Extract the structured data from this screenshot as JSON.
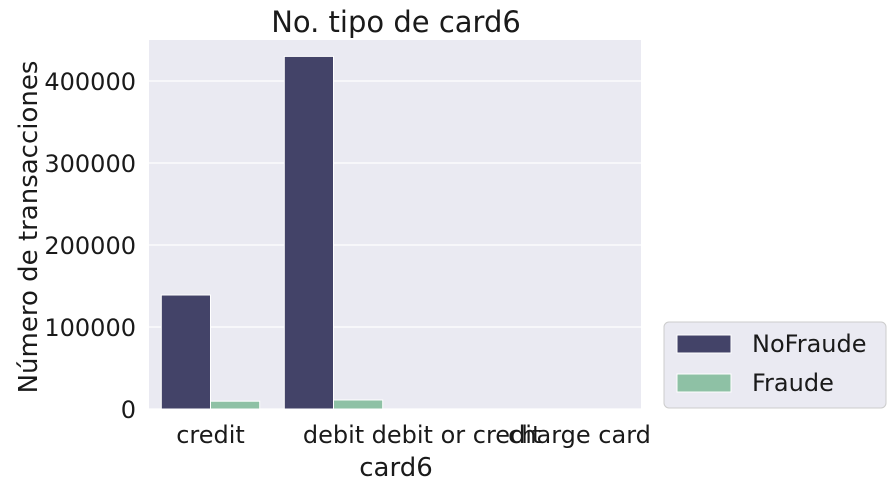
{
  "chart_data": {
    "type": "bar",
    "title": "No. tipo de card6",
    "xlabel": "card6",
    "ylabel": "Número de transacciones",
    "categories": [
      "credit",
      "debit",
      "debit or credit",
      "charge card"
    ],
    "series": [
      {
        "name": "NoFraude",
        "values": [
          139000,
          430000,
          30,
          15
        ],
        "color": "#434368"
      },
      {
        "name": "Fraude",
        "values": [
          9500,
          11000,
          0,
          0
        ],
        "color": "#8ec1a5"
      }
    ],
    "ylim": [
      0,
      450000
    ],
    "yticks": [
      0,
      100000,
      200000,
      300000,
      400000
    ],
    "ytick_labels": [
      "0",
      "100000",
      "200000",
      "300000",
      "400000"
    ],
    "grid": true,
    "legend_position": "outside-bottom-right",
    "colors": {
      "plot_background": "#eaeaf2",
      "grid": "#ffffff",
      "legend_background": "#eaeaf2",
      "legend_border": "#cccccc"
    }
  }
}
